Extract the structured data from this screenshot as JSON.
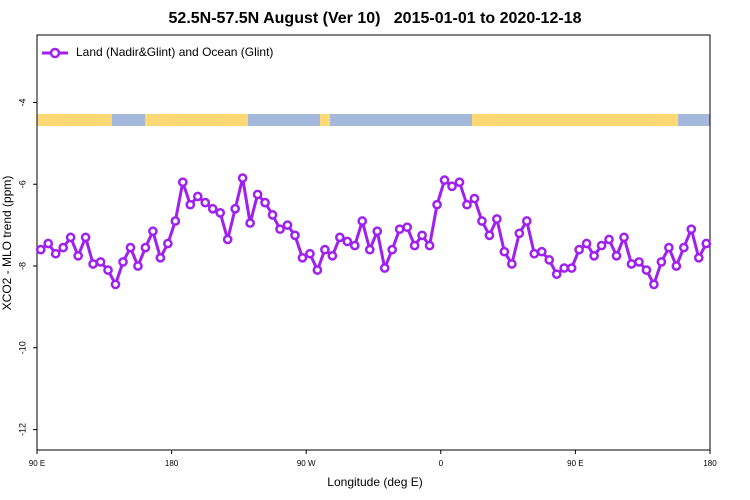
{
  "chart_data": {
    "type": "line",
    "title": "52.5N-57.5N August (Ver 10)   2015-01-01 to 2020-12-18",
    "x_label": "Longitude (deg E)",
    "y_label": "XCO2 - MLO trend (ppm)",
    "x": [
      92.5,
      97.5,
      102.5,
      107.5,
      112.5,
      117.5,
      122.5,
      127.5,
      132.5,
      137.5,
      142.5,
      147.5,
      152.5,
      157.5,
      162.5,
      167.5,
      172.5,
      177.5,
      182.5,
      187.5,
      192.5,
      197.5,
      202.5,
      207.5,
      212.5,
      217.5,
      222.5,
      227.5,
      232.5,
      237.5,
      242.5,
      247.5,
      252.5,
      257.5,
      262.5,
      267.5,
      272.5,
      277.5,
      282.5,
      287.5,
      292.5,
      297.5,
      302.5,
      307.5,
      312.5,
      317.5,
      322.5,
      327.5,
      332.5,
      337.5,
      342.5,
      347.5,
      352.5,
      357.5,
      362.5,
      367.5,
      372.5,
      377.5,
      382.5,
      387.5,
      392.5,
      397.5,
      402.5,
      407.5,
      412.5,
      417.5,
      422.5,
      427.5,
      432.5,
      437.5,
      442.5,
      447.5,
      452.5,
      457.5,
      462.5,
      467.5,
      472.5,
      477.5,
      482.5,
      487.5,
      492.5,
      497.5,
      502.5,
      507.5,
      512.5,
      517.5,
      522.5,
      527.5,
      532.5,
      537.5
    ],
    "series": [
      {
        "name": "Land (Nadir&Glint) and Ocean (Glint)",
        "color": "#a020f0",
        "values": [
          -7.6,
          -7.45,
          -7.7,
          -7.55,
          -7.3,
          -7.75,
          -7.3,
          -7.95,
          -7.9,
          -8.1,
          -8.45,
          -7.9,
          -7.55,
          -8.0,
          -7.55,
          -7.15,
          -7.8,
          -7.45,
          -6.9,
          -5.95,
          -6.5,
          -6.3,
          -6.45,
          -6.6,
          -6.7,
          -7.35,
          -6.6,
          -5.85,
          -6.95,
          -6.25,
          -6.45,
          -6.75,
          -7.1,
          -7.0,
          -7.25,
          -7.8,
          -7.7,
          -8.1,
          -7.6,
          -7.75,
          -7.3,
          -7.4,
          -7.5,
          -6.9,
          -7.6,
          -7.15,
          -8.05,
          -7.6,
          -7.1,
          -7.05,
          -7.5,
          -7.25,
          -7.5,
          -6.5,
          -5.9,
          -6.05,
          -5.95,
          -6.5,
          -6.35,
          -6.9,
          -7.25,
          -6.85,
          -7.65,
          -7.95,
          -7.2,
          -6.9,
          -7.7,
          -7.65,
          -7.85,
          -8.2,
          -8.05,
          -8.05,
          -7.6,
          -7.45,
          -7.75,
          -7.5,
          -7.35,
          -7.75,
          -7.3,
          -7.95,
          -7.9,
          -8.1,
          -8.45,
          -7.9,
          -7.55,
          -8.0,
          -7.55,
          -7.1,
          -7.8,
          -7.45
        ]
      }
    ],
    "xlim": [
      90,
      540
    ],
    "xticks": [
      {
        "value": 90,
        "label": "90 E"
      },
      {
        "value": 180,
        "label": "180"
      },
      {
        "value": 270,
        "label": "90 W"
      },
      {
        "value": 360,
        "label": "0"
      },
      {
        "value": 450,
        "label": "90 E"
      },
      {
        "value": 540,
        "label": "180"
      }
    ],
    "ylim": [
      -12.5,
      -2.35
    ],
    "yticks": [
      -12,
      -10,
      -8,
      -6,
      -4
    ],
    "legend": "top-left"
  }
}
